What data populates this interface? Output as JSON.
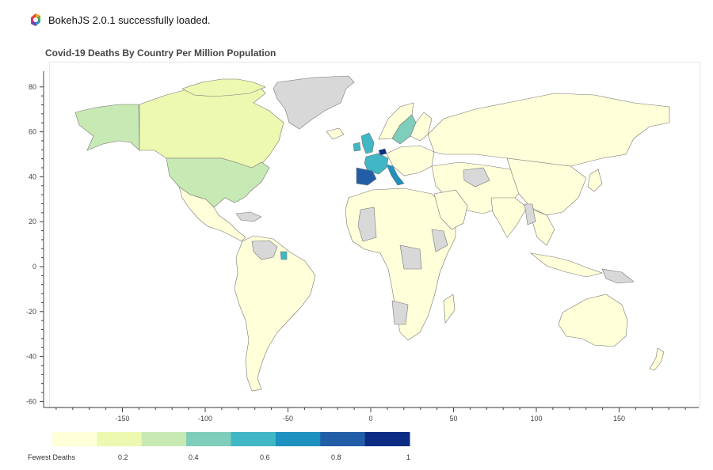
{
  "status": {
    "text": "BokehJS 2.0.1 successfully loaded."
  },
  "title": "Covid-19 Deaths By Country Per Million Population",
  "axes": {
    "x_ticks": [
      "-150",
      "-100",
      "-50",
      "0",
      "50",
      "100",
      "150"
    ],
    "y_ticks": [
      "80",
      "60",
      "40",
      "20",
      "0",
      "-20",
      "-40",
      "-60"
    ]
  },
  "legend": {
    "colors": [
      "#ffffd9",
      "#edf8b1",
      "#c7e9b4",
      "#7fcdbb",
      "#41b6c4",
      "#1d91c0",
      "#225ea8",
      "#0c2c84"
    ],
    "labels": [
      "Fewest Deaths",
      "0.2",
      "0.4",
      "0.6",
      "0.8",
      "1"
    ]
  },
  "map_colors": {
    "no_data": "#d8d8d8",
    "lowest": "#ffffd9",
    "canada": "#edf8b1",
    "usa": "#c7e9b4",
    "sweden": "#7fcdbb",
    "france": "#41b6c4",
    "italy": "#1d91c0",
    "spain": "#225ea8",
    "belgium": "#0c2c84"
  }
}
